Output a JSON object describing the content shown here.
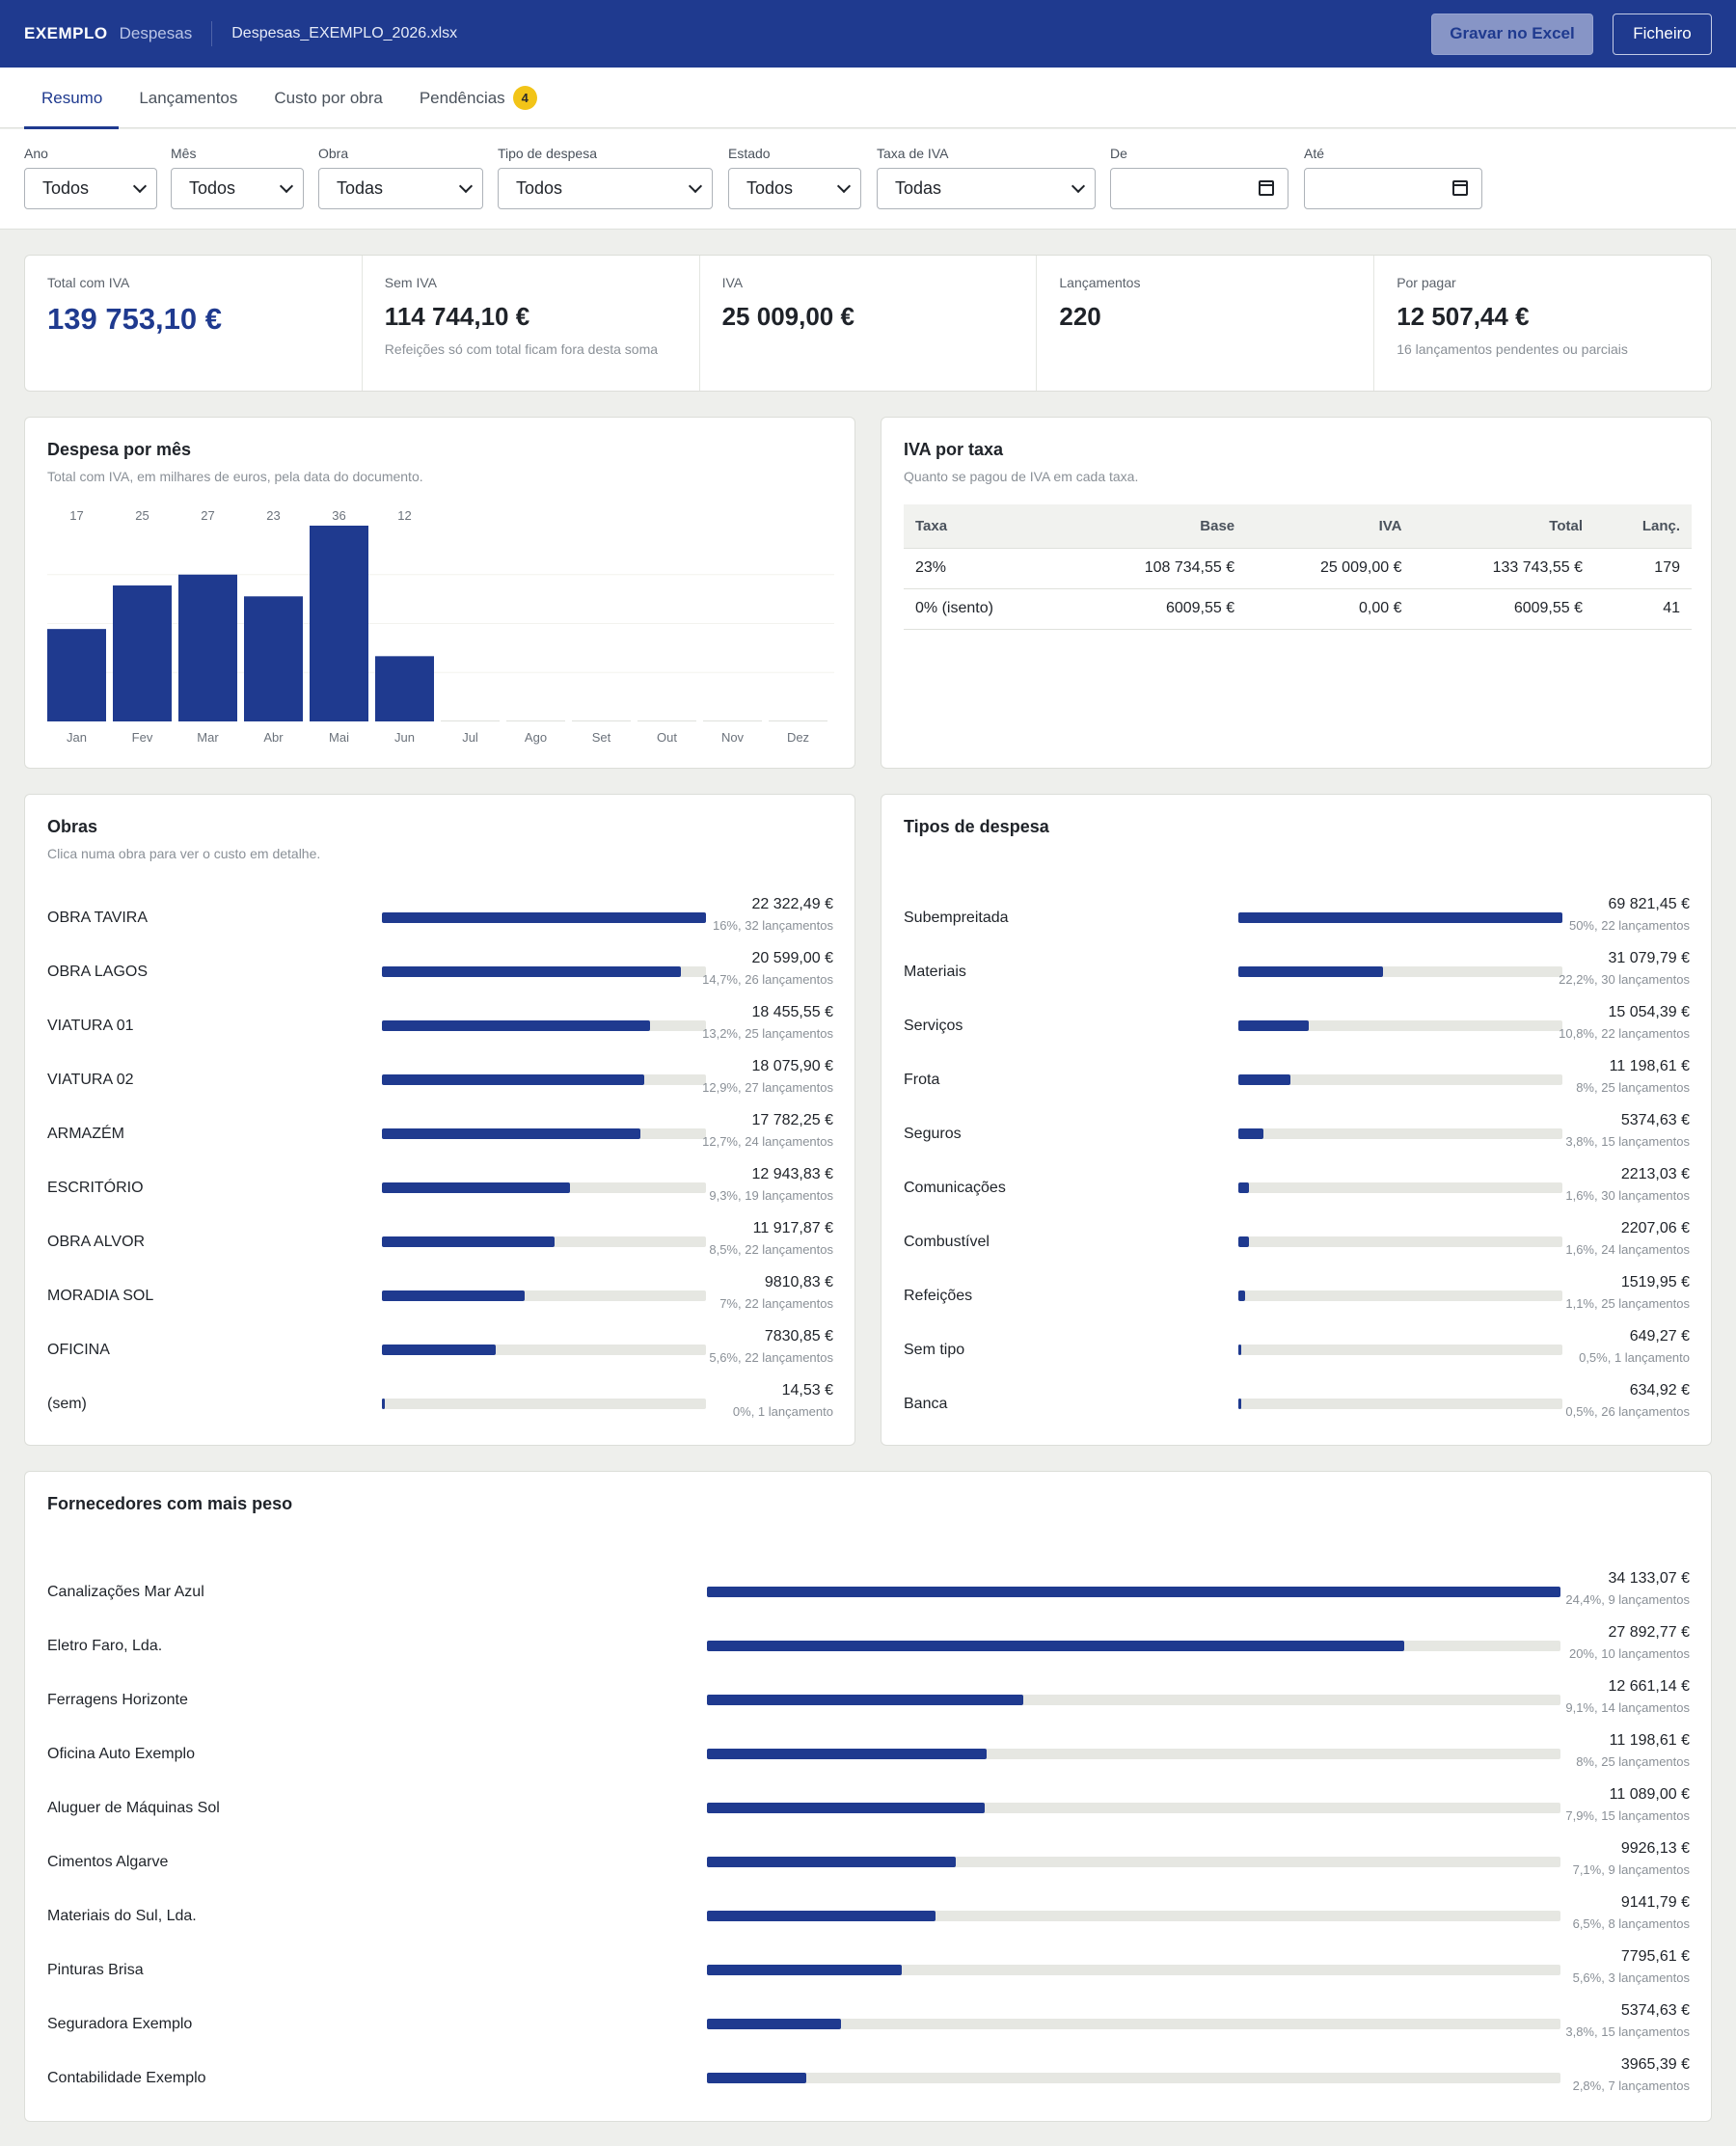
{
  "topbar": {
    "brand": "EXEMPLO",
    "brand_sub": "Despesas",
    "file": "Despesas_EXEMPLO_2026.xlsx",
    "btn_excel": "Gravar no Excel",
    "btn_file": "Ficheiro"
  },
  "tabs": [
    {
      "label": "Resumo",
      "active": true
    },
    {
      "label": "Lançamentos"
    },
    {
      "label": "Custo por obra"
    },
    {
      "label": "Pendências",
      "badge": "4"
    }
  ],
  "filters": {
    "ano": {
      "label": "Ano",
      "value": "Todos"
    },
    "mes": {
      "label": "Mês",
      "value": "Todos"
    },
    "obra": {
      "label": "Obra",
      "value": "Todas"
    },
    "tipo": {
      "label": "Tipo de despesa",
      "value": "Todos"
    },
    "estado": {
      "label": "Estado",
      "value": "Todos"
    },
    "taxa": {
      "label": "Taxa de IVA",
      "value": "Todas"
    },
    "de": {
      "label": "De"
    },
    "ate": {
      "label": "Até"
    }
  },
  "kpis": {
    "total": {
      "label": "Total com IVA",
      "value": "139 753,10 €"
    },
    "sem_iva": {
      "label": "Sem IVA",
      "value": "114 744,10 €",
      "note": "Refeições só com total ficam fora desta soma"
    },
    "iva": {
      "label": "IVA",
      "value": "25 009,00 €"
    },
    "lanc": {
      "label": "Lançamentos",
      "value": "220"
    },
    "por_pagar": {
      "label": "Por pagar",
      "value": "12 507,44 €",
      "note": "16 lançamentos pendentes ou parciais"
    }
  },
  "monthly": {
    "title": "Despesa por mês",
    "subtitle": "Total com IVA, em milhares de euros, pela data do documento."
  },
  "chart_data": {
    "type": "bar",
    "categories": [
      "Jan",
      "Fev",
      "Mar",
      "Abr",
      "Mai",
      "Jun",
      "Jul",
      "Ago",
      "Set",
      "Out",
      "Nov",
      "Dez"
    ],
    "values": [
      17,
      25,
      27,
      23,
      36,
      12,
      0,
      0,
      0,
      0,
      0,
      0
    ],
    "labels": [
      "17",
      "25",
      "27",
      "23",
      "36",
      "12",
      "",
      "",
      "",
      "",
      "",
      ""
    ],
    "title": "Despesa por mês",
    "ylim": [
      0,
      36
    ],
    "color": "#1f3a8f"
  },
  "vat": {
    "title": "IVA por taxa",
    "subtitle": "Quanto se pagou de IVA em cada taxa.",
    "headers": [
      "Taxa",
      "Base",
      "IVA",
      "Total",
      "Lanç."
    ],
    "rows": [
      [
        "23%",
        "108 734,55 €",
        "25 009,00 €",
        "133 743,55 €",
        "179"
      ],
      [
        "0% (isento)",
        "6009,55 €",
        "0,00 €",
        "6009,55 €",
        "41"
      ]
    ]
  },
  "obras": {
    "title": "Obras",
    "subtitle": "Clica numa obra para ver o custo em detalhe.",
    "rows": [
      {
        "label": "OBRA TAVIRA",
        "value": "22 322,49 €",
        "meta": "16%, 32 lançamentos",
        "pct": 100
      },
      {
        "label": "OBRA LAGOS",
        "value": "20 599,00 €",
        "meta": "14,7%, 26 lançamentos",
        "pct": 92.3
      },
      {
        "label": "VIATURA 01",
        "value": "18 455,55 €",
        "meta": "13,2%, 25 lançamentos",
        "pct": 82.7
      },
      {
        "label": "VIATURA 02",
        "value": "18 075,90 €",
        "meta": "12,9%, 27 lançamentos",
        "pct": 81
      },
      {
        "label": "ARMAZÉM",
        "value": "17 782,25 €",
        "meta": "12,7%, 24 lançamentos",
        "pct": 79.7
      },
      {
        "label": "ESCRITÓRIO",
        "value": "12 943,83 €",
        "meta": "9,3%, 19 lançamentos",
        "pct": 58
      },
      {
        "label": "OBRA ALVOR",
        "value": "11 917,87 €",
        "meta": "8,5%, 22 lançamentos",
        "pct": 53.4
      },
      {
        "label": "MORADIA SOL",
        "value": "9810,83 €",
        "meta": "7%, 22 lançamentos",
        "pct": 44
      },
      {
        "label": "OFICINA",
        "value": "7830,85 €",
        "meta": "5,6%, 22 lançamentos",
        "pct": 35.1
      },
      {
        "label": "(sem)",
        "value": "14,53 €",
        "meta": "0%, 1 lançamento",
        "pct": 0.4
      }
    ]
  },
  "tipos": {
    "title": "Tipos de despesa",
    "rows": [
      {
        "label": "Subempreitada",
        "value": "69 821,45 €",
        "meta": "50%, 22 lançamentos",
        "pct": 100
      },
      {
        "label": "Materiais",
        "value": "31 079,79 €",
        "meta": "22,2%, 30 lançamentos",
        "pct": 44.5
      },
      {
        "label": "Serviços",
        "value": "15 054,39 €",
        "meta": "10,8%, 22 lançamentos",
        "pct": 21.6
      },
      {
        "label": "Frota",
        "value": "11 198,61 €",
        "meta": "8%, 25 lançamentos",
        "pct": 16
      },
      {
        "label": "Seguros",
        "value": "5374,63 €",
        "meta": "3,8%, 15 lançamentos",
        "pct": 7.7
      },
      {
        "label": "Comunicações",
        "value": "2213,03 €",
        "meta": "1,6%, 30 lançamentos",
        "pct": 3.2
      },
      {
        "label": "Combustível",
        "value": "2207,06 €",
        "meta": "1,6%, 24 lançamentos",
        "pct": 3.2
      },
      {
        "label": "Refeições",
        "value": "1519,95 €",
        "meta": "1,1%, 25 lançamentos",
        "pct": 2.2
      },
      {
        "label": "Sem tipo",
        "value": "649,27 €",
        "meta": "0,5%, 1 lançamento",
        "pct": 0.9
      },
      {
        "label": "Banca",
        "value": "634,92 €",
        "meta": "0,5%, 26 lançamentos",
        "pct": 0.9
      }
    ]
  },
  "fornecedores": {
    "title": "Fornecedores com mais peso",
    "rows": [
      {
        "label": "Canalizações Mar Azul",
        "value": "34 133,07 €",
        "meta": "24,4%, 9 lançamentos",
        "pct": 100
      },
      {
        "label": "Eletro Faro, Lda.",
        "value": "27 892,77 €",
        "meta": "20%, 10 lançamentos",
        "pct": 81.7
      },
      {
        "label": "Ferragens Horizonte",
        "value": "12 661,14 €",
        "meta": "9,1%, 14 lançamentos",
        "pct": 37.1
      },
      {
        "label": "Oficina Auto Exemplo",
        "value": "11 198,61 €",
        "meta": "8%, 25 lançamentos",
        "pct": 32.8
      },
      {
        "label": "Aluguer de Máquinas Sol",
        "value": "11 089,00 €",
        "meta": "7,9%, 15 lançamentos",
        "pct": 32.5
      },
      {
        "label": "Cimentos Algarve",
        "value": "9926,13 €",
        "meta": "7,1%, 9 lançamentos",
        "pct": 29.1
      },
      {
        "label": "Materiais do Sul, Lda.",
        "value": "9141,79 €",
        "meta": "6,5%, 8 lançamentos",
        "pct": 26.8
      },
      {
        "label": "Pinturas Brisa",
        "value": "7795,61 €",
        "meta": "5,6%, 3 lançamentos",
        "pct": 22.8
      },
      {
        "label": "Seguradora Exemplo",
        "value": "5374,63 €",
        "meta": "3,8%, 15 lançamentos",
        "pct": 15.7
      },
      {
        "label": "Contabilidade Exemplo",
        "value": "3965,39 €",
        "meta": "2,8%, 7 lançamentos",
        "pct": 11.6
      }
    ]
  }
}
